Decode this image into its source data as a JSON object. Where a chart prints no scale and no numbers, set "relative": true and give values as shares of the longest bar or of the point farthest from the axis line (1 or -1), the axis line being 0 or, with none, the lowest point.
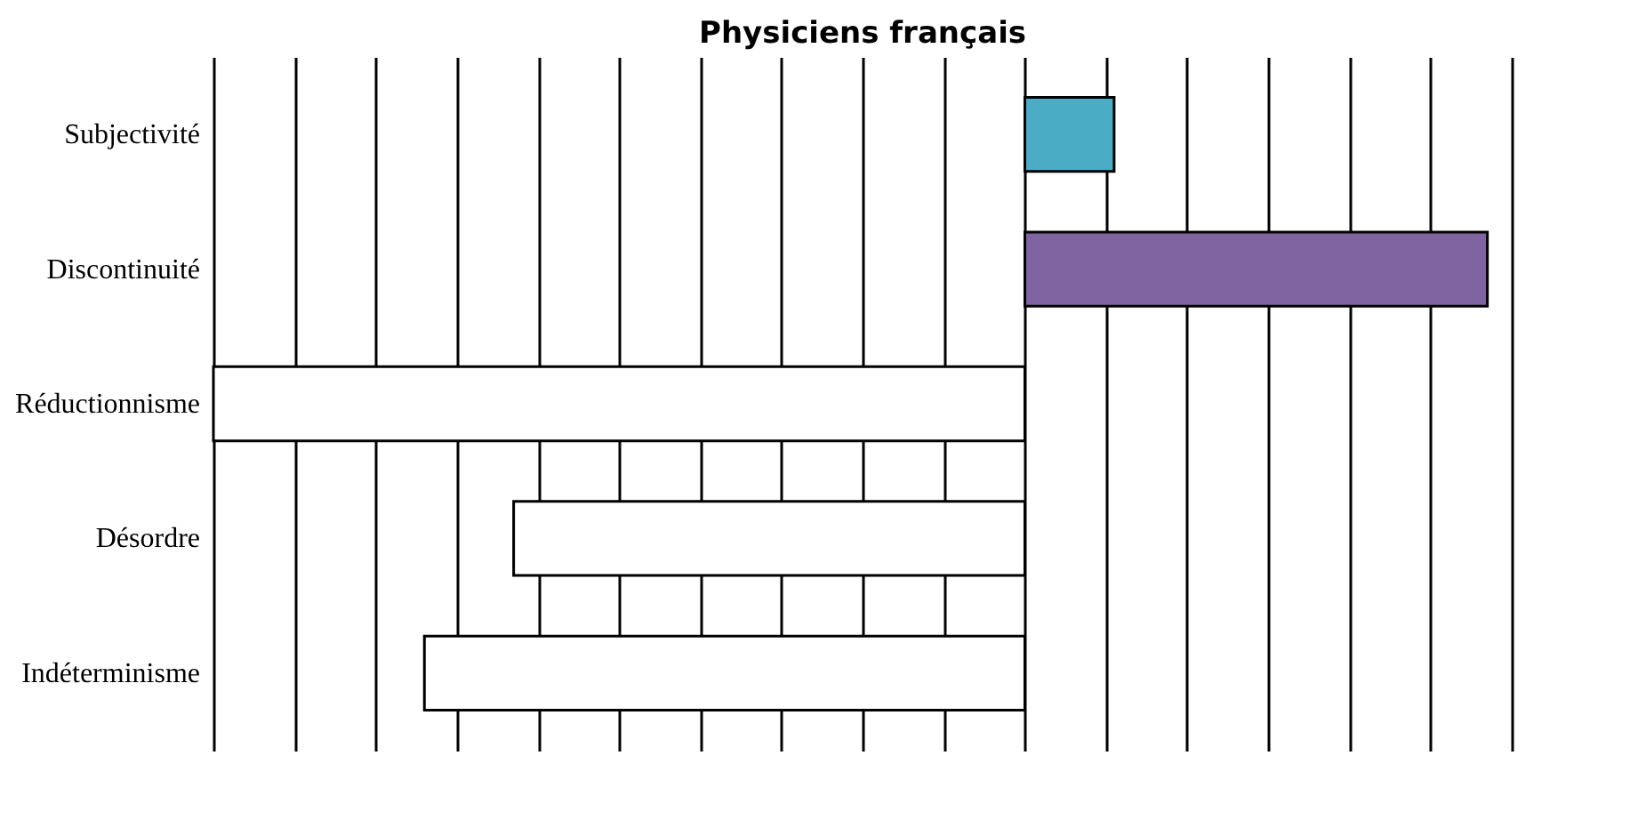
{
  "chart_data": {
    "type": "bar",
    "orientation": "horizontal",
    "relative": true,
    "title": "Physiciens français",
    "categories": [
      "Subjectivité",
      "Discontinuité",
      "Réductionnisme",
      "Désordre",
      "Indéterminisme"
    ],
    "values": [
      0.11,
      0.57,
      -1,
      -0.63,
      -0.74
    ],
    "colors": [
      "#4bacc6",
      "#8064a2",
      "#ffffff",
      "#ffffff",
      "#ffffff"
    ],
    "grid": "x"
  }
}
